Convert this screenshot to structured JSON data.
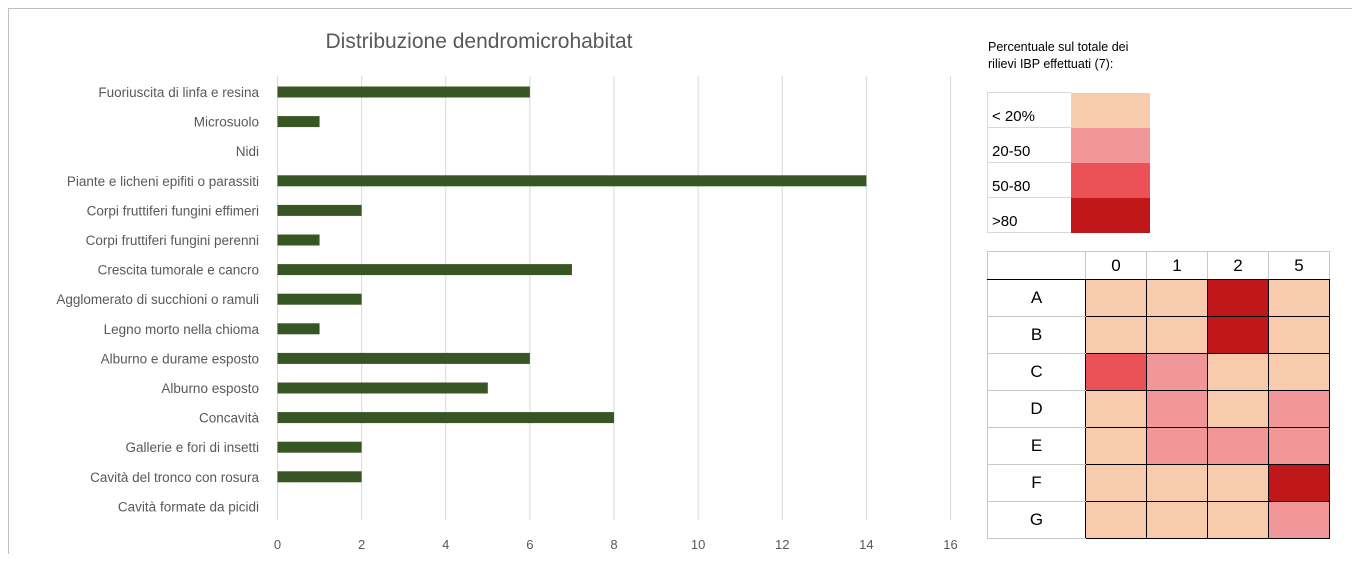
{
  "chart_data": {
    "type": "bar",
    "orientation": "horizontal",
    "title": "Distribuzione dendromicrohabitat",
    "categories": [
      "Fuoriuscita di linfa e resina",
      "Microsuolo",
      "Nidi",
      "Piante e licheni epifiti o parassiti",
      "Corpi fruttiferi fungini effimeri",
      "Corpi fruttiferi fungini perenni",
      "Crescita tumorale e cancro",
      "Agglomerato di succhioni o ramuli",
      "Legno morto nella chioma",
      "Alburno e durame esposto",
      "Alburno esposto",
      "Concavità",
      "Gallerie e fori di insetti",
      "Cavità del tronco con rosura",
      "Cavità formate da picidi"
    ],
    "values": [
      6,
      1,
      0,
      14,
      2,
      1,
      7,
      2,
      1,
      6,
      5,
      8,
      2,
      2,
      0
    ],
    "xlim": [
      0,
      16
    ],
    "xticks": [
      "0",
      "2",
      "4",
      "6",
      "8",
      "10",
      "12",
      "14",
      "16"
    ],
    "grid": true,
    "bar_color": "#375623"
  },
  "legend": {
    "title_line1": "Percentuale sul totale dei",
    "title_line2": "rilievi IBP effettuati (7):",
    "items": [
      {
        "label": "< 20%",
        "color": "#f8cbad"
      },
      {
        "label": "20-50",
        "color": "#f1979a"
      },
      {
        "label": "50-80",
        "color": "#eb5257"
      },
      {
        "label": ">80",
        "color": "#c0171b"
      }
    ]
  },
  "heatmap": {
    "columns": [
      "0",
      "1",
      "2",
      "5"
    ],
    "rows": [
      {
        "label": "A",
        "cells": [
          0,
          0,
          3,
          0
        ]
      },
      {
        "label": "B",
        "cells": [
          0,
          0,
          3,
          0
        ]
      },
      {
        "label": "C",
        "cells": [
          2,
          1,
          0,
          0
        ]
      },
      {
        "label": "D",
        "cells": [
          0,
          1,
          0,
          1
        ]
      },
      {
        "label": "E",
        "cells": [
          0,
          1,
          1,
          1
        ]
      },
      {
        "label": "F",
        "cells": [
          0,
          0,
          0,
          3
        ]
      },
      {
        "label": "G",
        "cells": [
          0,
          0,
          0,
          1
        ]
      }
    ]
  }
}
